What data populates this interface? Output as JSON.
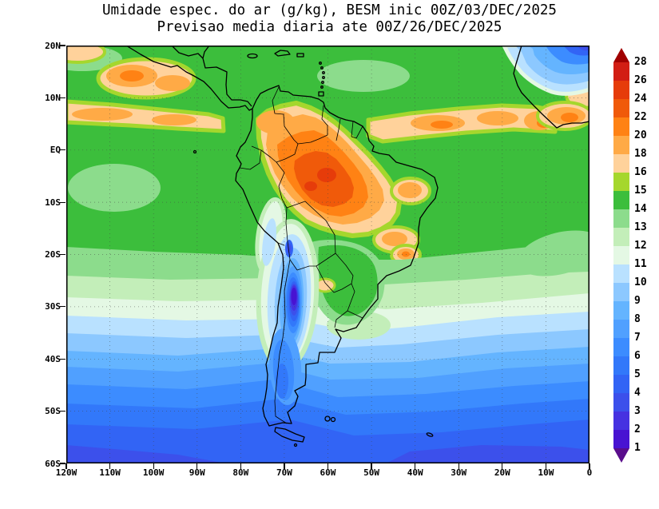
{
  "title": {
    "line1": "Umidade espec. do ar (g/kg), BESM inic 00Z/03/DEC/2025",
    "line2": "Previsao media diaria ate 00Z/26/DEC/2025"
  },
  "axes": {
    "lat_labels": [
      "20N",
      "10N",
      "EQ",
      "10S",
      "20S",
      "30S",
      "40S",
      "50S",
      "60S"
    ],
    "lon_labels": [
      "120W",
      "110W",
      "100W",
      "90W",
      "80W",
      "70W",
      "60W",
      "50W",
      "40W",
      "30W",
      "20W",
      "10W",
      "0"
    ]
  },
  "colorbar": {
    "tick_labels": [
      "28",
      "26",
      "24",
      "22",
      "20",
      "18",
      "16",
      "15",
      "14",
      "13",
      "12",
      "11",
      "10",
      "9",
      "8",
      "7",
      "6",
      "5",
      "4",
      "3",
      "2",
      "1"
    ],
    "segment_keys_top_to_bottom": [
      "r26",
      "r24",
      "o22",
      "o20",
      "o18",
      "t16",
      "y15",
      "g14",
      "g13",
      "g12",
      "w11",
      "b10",
      "b9",
      "b8",
      "b7",
      "b6",
      "b5",
      "b4",
      "b3",
      "v2",
      "v1"
    ],
    "arrow_top_key": "au",
    "arrow_bottom_key": "ad"
  },
  "palette": {
    "au": "#a00000",
    "r26": "#d21e14",
    "r24": "#e63c0a",
    "o22": "#f05a0a",
    "o20": "#ff8214",
    "o18": "#ffaa46",
    "t16": "#ffd29b",
    "y15": "#a5d72d",
    "g14": "#3cbe3c",
    "g13": "#8cdc8c",
    "g12": "#c3eeb9",
    "w11": "#e4f8e4",
    "b10": "#b9e1ff",
    "b9": "#8cc8ff",
    "b8": "#64b4ff",
    "b7": "#50a0ff",
    "b6": "#3c8cff",
    "b5": "#3278fa",
    "b4": "#3264f5",
    "b3": "#3c50eb",
    "v2": "#4632e1",
    "v1": "#4813d2",
    "ad": "#5a0d8c",
    "coastline": "#000000"
  },
  "chart_data": {
    "type": "contour-map",
    "variable": "Umidade especifica do ar",
    "units": "g/kg",
    "model_run": "BESM inic 00Z/03/DEC/2025",
    "forecast_span": "Previsao media diaria ate 00Z/26/DEC/2025",
    "lon_range_deg": [
      -120,
      0
    ],
    "lat_range_deg": [
      -60,
      20
    ],
    "contour_levels": [
      1,
      2,
      3,
      4,
      5,
      6,
      7,
      8,
      9,
      10,
      11,
      12,
      13,
      14,
      15,
      16,
      18,
      20,
      22,
      24,
      26,
      28
    ],
    "legend_position": "right",
    "grid": "dotted 10-degree graticule",
    "features": [
      {
        "region": "Amazonia central (~60W, 5S)",
        "value_g_kg": "22-24"
      },
      {
        "region": "Bacia Amazonica e Venezuela",
        "value_g_kg": "18-22"
      },
      {
        "region": "ITCZ Atlantico 2N-8N",
        "value_g_kg": "16-22"
      },
      {
        "region": "ITCZ Pacifico leste 4N-9N",
        "value_g_kg": "16-20"
      },
      {
        "region": "Oceanos tropicais 20N-20S",
        "value_g_kg": "13-16"
      },
      {
        "region": "Nordeste do Brasil (interior)",
        "value_g_kg": "16-20"
      },
      {
        "region": "Altiplano / Andes 20S-33S (~68W)",
        "value_g_kg": "1-4"
      },
      {
        "region": "Costa Chile/Peru 15S-35S",
        "value_g_kg": "9-12"
      },
      {
        "region": "Atlantico NE / Africa ocidental (ar seco do Sahara)",
        "value_g_kg": "3-9"
      },
      {
        "region": "Faixa 30S-40S",
        "value_g_kg": "8-11"
      },
      {
        "region": "Faixa 40S-50S",
        "value_g_kg": "5-8"
      },
      {
        "region": "Faixa 50S-60S",
        "value_g_kg": "3-5"
      }
    ]
  }
}
